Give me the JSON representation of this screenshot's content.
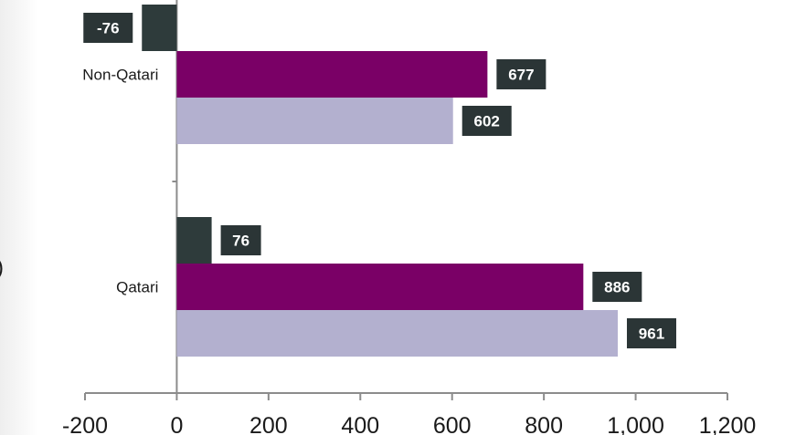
{
  "chart_data": {
    "type": "bar",
    "orientation": "horizontal",
    "categories": [
      "Non-Qatari",
      "Qatari"
    ],
    "series": [
      {
        "values": [
          -76,
          76
        ],
        "color": "#2e3b3b"
      },
      {
        "values": [
          677,
          886
        ],
        "color": "#7a0066"
      },
      {
        "values": [
          602,
          961
        ],
        "color": "#b3b0cf"
      }
    ],
    "data_labels": [
      [
        "-76",
        "677",
        "602"
      ],
      [
        "76",
        "886",
        "961"
      ]
    ],
    "xlim": [
      -200,
      1200
    ],
    "xticks": [
      -200,
      0,
      200,
      400,
      600,
      800,
      1000,
      1200
    ],
    "xtick_labels": [
      "-200",
      "0",
      "200",
      "400",
      "600",
      "800",
      "1,000",
      "1,200"
    ],
    "label_box_color": "#2b3536",
    "title": "",
    "xlabel": "",
    "ylabel": "",
    "grid": false,
    "legend": "none"
  },
  "page": {
    "edge_fragment": ")"
  }
}
